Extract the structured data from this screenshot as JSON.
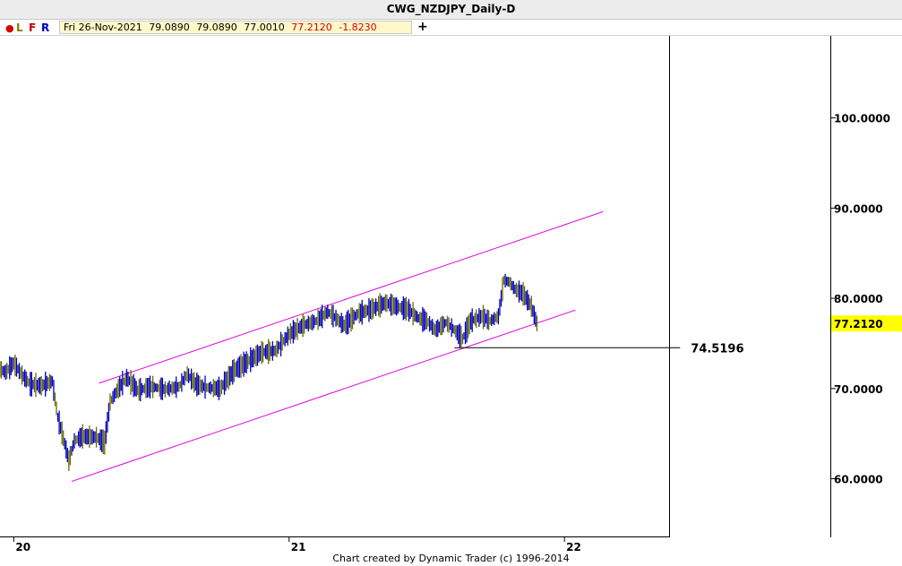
{
  "window": {
    "title": "CWG_NZDJPY_Daily-D"
  },
  "toolbar": {
    "dot_icon": "record-dot",
    "buttons": [
      {
        "label": "L",
        "color": "#808000"
      },
      {
        "label": "F",
        "color": "#c00000"
      },
      {
        "label": "R",
        "color": "#0000c0"
      }
    ],
    "quote": {
      "date": "Fri 26-Nov-2021",
      "open": "79.0890",
      "high": "79.0890",
      "low": "77.0010",
      "close": "77.2120",
      "change": "-1.8230"
    },
    "plus_label": "+"
  },
  "chart_data": {
    "type": "line",
    "series": [
      {
        "x": [
          2019.85,
          2019.9,
          2019.97,
          2020.0,
          2020.03,
          2020.06,
          2020.1,
          2020.14,
          2020.16,
          2020.18,
          2020.2,
          2020.22,
          2020.25,
          2020.3,
          2020.33,
          2020.35,
          2020.38,
          2020.41,
          2020.45,
          2020.5,
          2020.55,
          2020.6,
          2020.63,
          2020.66,
          2020.7,
          2020.75,
          2020.8,
          2020.85,
          2020.9,
          2020.95,
          2021.0,
          2021.05,
          2021.1,
          2021.14,
          2021.17,
          2021.2,
          2021.25,
          2021.3,
          2021.35,
          2021.4,
          2021.43,
          2021.47,
          2021.5,
          2021.53,
          2021.57,
          2021.6,
          2021.63,
          2021.66,
          2021.7,
          2021.73,
          2021.76,
          2021.78,
          2021.8,
          2021.82,
          2021.85,
          2021.88,
          2021.9
        ],
        "values": [
          72.0,
          73.0,
          71.8,
          72.8,
          71.5,
          70.5,
          70.3,
          70.8,
          66.8,
          64.5,
          62.0,
          64.2,
          64.7,
          64.6,
          64.0,
          68.5,
          70.0,
          71.2,
          69.8,
          70.2,
          69.9,
          70.2,
          71.6,
          70.5,
          70.1,
          70.0,
          72.0,
          73.0,
          74.0,
          74.2,
          76.0,
          77.0,
          77.5,
          78.5,
          77.8,
          77.0,
          78.3,
          78.8,
          79.5,
          79.0,
          78.8,
          77.8,
          77.5,
          76.5,
          77.3,
          76.5,
          75.5,
          77.5,
          78.0,
          77.5,
          78.0,
          82.0,
          81.8,
          81.0,
          80.5,
          79.1,
          77.212
        ]
      }
    ],
    "channel_lines": [
      {
        "from": [
          2020.31,
          70.6
        ],
        "to": [
          2022.14,
          89.6
        ]
      },
      {
        "from": [
          2020.21,
          59.7
        ],
        "to": [
          2022.04,
          78.7
        ]
      }
    ],
    "support_level": {
      "x_start": 2021.6,
      "x_end": 2022.42,
      "value": 74.5196,
      "label": "74.5196"
    },
    "last_price_label": "77.2120",
    "last_price_color": "#ffff00",
    "price_color": "#0000c0",
    "bar_color": "#6b6b00",
    "channel_color": "#e000e0",
    "y_ticks": [
      60,
      70,
      80,
      90,
      100
    ],
    "y_tick_labels": [
      "60.0000",
      "70.0000",
      "80.0000",
      "90.0000",
      "100.0000"
    ],
    "x_ticks": [
      2020,
      2021,
      2022
    ],
    "x_tick_labels": [
      "20",
      "21",
      "22"
    ],
    "xlim": [
      2019.95,
      2022.38
    ],
    "ylim": [
      53.6,
      109.1
    ],
    "grid": false
  },
  "footer": {
    "text": "Chart created by Dynamic Trader  (c) 1996-2014"
  }
}
